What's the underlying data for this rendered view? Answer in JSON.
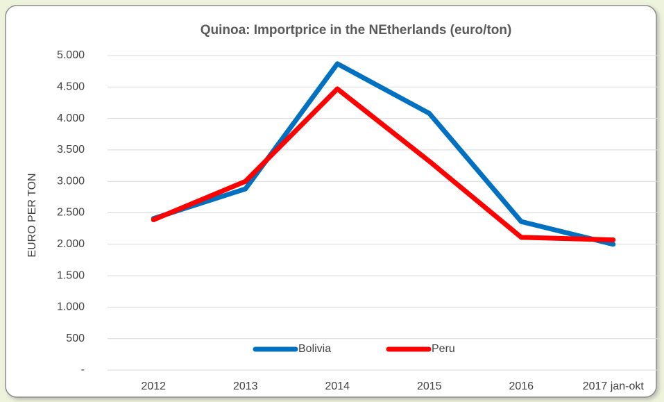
{
  "chart_data": {
    "type": "line",
    "title": "Quinoa: Importprice in the NEtherlands (euro/ton)",
    "y_label": "EURO PER TON",
    "categories": [
      "2012",
      "2013",
      "2014",
      "2015",
      "2016",
      "2017 jan-okt"
    ],
    "series": [
      {
        "name": "Bolivia",
        "color": "#0070c0",
        "values": [
          2410,
          2880,
          4870,
          4080,
          2360,
          2000
        ]
      },
      {
        "name": "Peru",
        "color": "#ff0000",
        "values": [
          2390,
          3000,
          4470,
          3320,
          2110,
          2070
        ]
      }
    ],
    "ylim": [
      0,
      5000
    ],
    "yticks": [
      {
        "value": 0,
        "label": "-"
      },
      500,
      {
        "value": 1000,
        "label": "1.000"
      },
      {
        "value": 1500,
        "label": "1.500"
      },
      {
        "value": 2000,
        "label": "2.000"
      },
      {
        "value": 2500,
        "label": "2.500"
      },
      {
        "value": 3000,
        "label": "3.000"
      },
      {
        "value": 3500,
        "label": "3.500"
      },
      {
        "value": 4000,
        "label": "4.000"
      },
      {
        "value": 4500,
        "label": "4.500"
      },
      {
        "value": 5000,
        "label": "5.000"
      }
    ],
    "grid": true,
    "legend": "bottom"
  }
}
